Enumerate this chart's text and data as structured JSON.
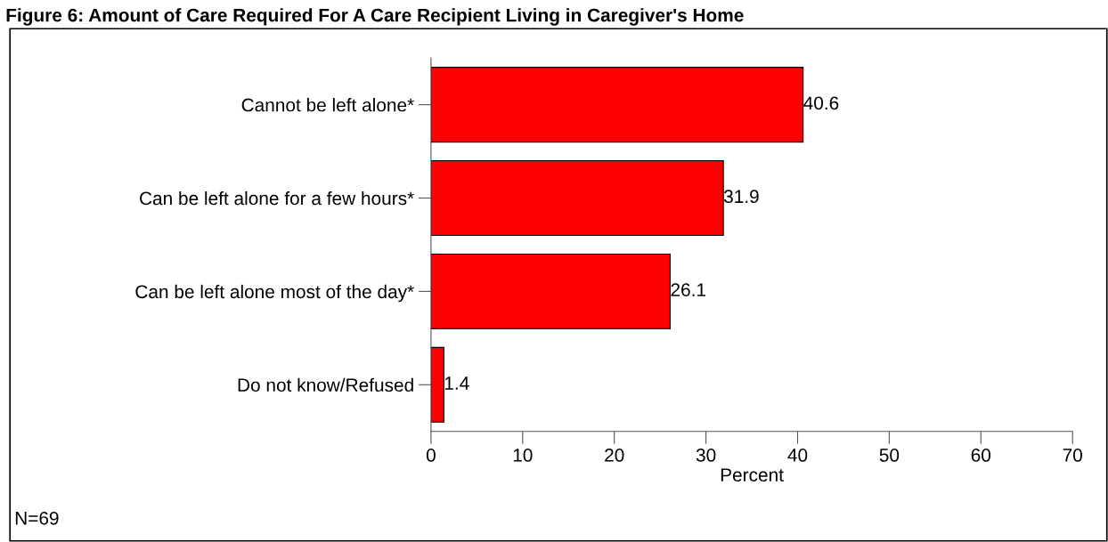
{
  "chart_data": {
    "type": "bar",
    "orientation": "horizontal",
    "title": "Figure 6: Amount of Care Required For A Care Recipient Living in Caregiver's Home",
    "categories": [
      "Cannot be left alone*",
      "Can be left alone for a few hours*",
      "Can be left alone most of the day*",
      "Do not know/Refused"
    ],
    "values": [
      40.6,
      31.9,
      26.1,
      1.4
    ],
    "color": "#ff0000",
    "data_labels": true,
    "xlabel": "Percent",
    "xlim": [
      0,
      70
    ],
    "xticks": [
      0,
      10,
      20,
      30,
      40,
      50,
      60,
      70
    ],
    "grid": false,
    "legend": false,
    "annotations": [
      "N=69"
    ]
  }
}
